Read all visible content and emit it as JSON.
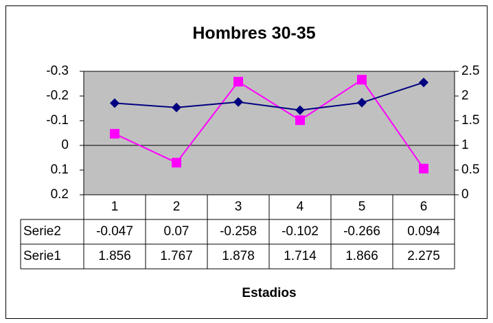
{
  "chart_data": {
    "type": "line",
    "title": "Hombres 30-35",
    "x_label": "Estadios",
    "categories": [
      "1",
      "2",
      "3",
      "4",
      "5",
      "6"
    ],
    "series": [
      {
        "name": "Serie2",
        "color": "#ff00ff",
        "marker": "square",
        "axis": "y",
        "values": [
          -0.047,
          0.07,
          -0.258,
          -0.102,
          -0.266,
          0.094
        ]
      },
      {
        "name": "Serie1",
        "color": "#000080",
        "marker": "diamond",
        "axis": "y2",
        "values": [
          1.856,
          1.767,
          1.878,
          1.714,
          1.866,
          2.275
        ]
      }
    ],
    "ylim": [
      0.2,
      -0.3
    ],
    "yticks": [
      -0.3,
      -0.2,
      -0.1,
      0,
      0.1,
      0.2
    ],
    "y2lim": [
      0,
      2.5
    ],
    "y2ticks": [
      0,
      0.5,
      1,
      1.5,
      2,
      2.5
    ],
    "data_table": true,
    "plot_background": "#c0c0c0"
  }
}
